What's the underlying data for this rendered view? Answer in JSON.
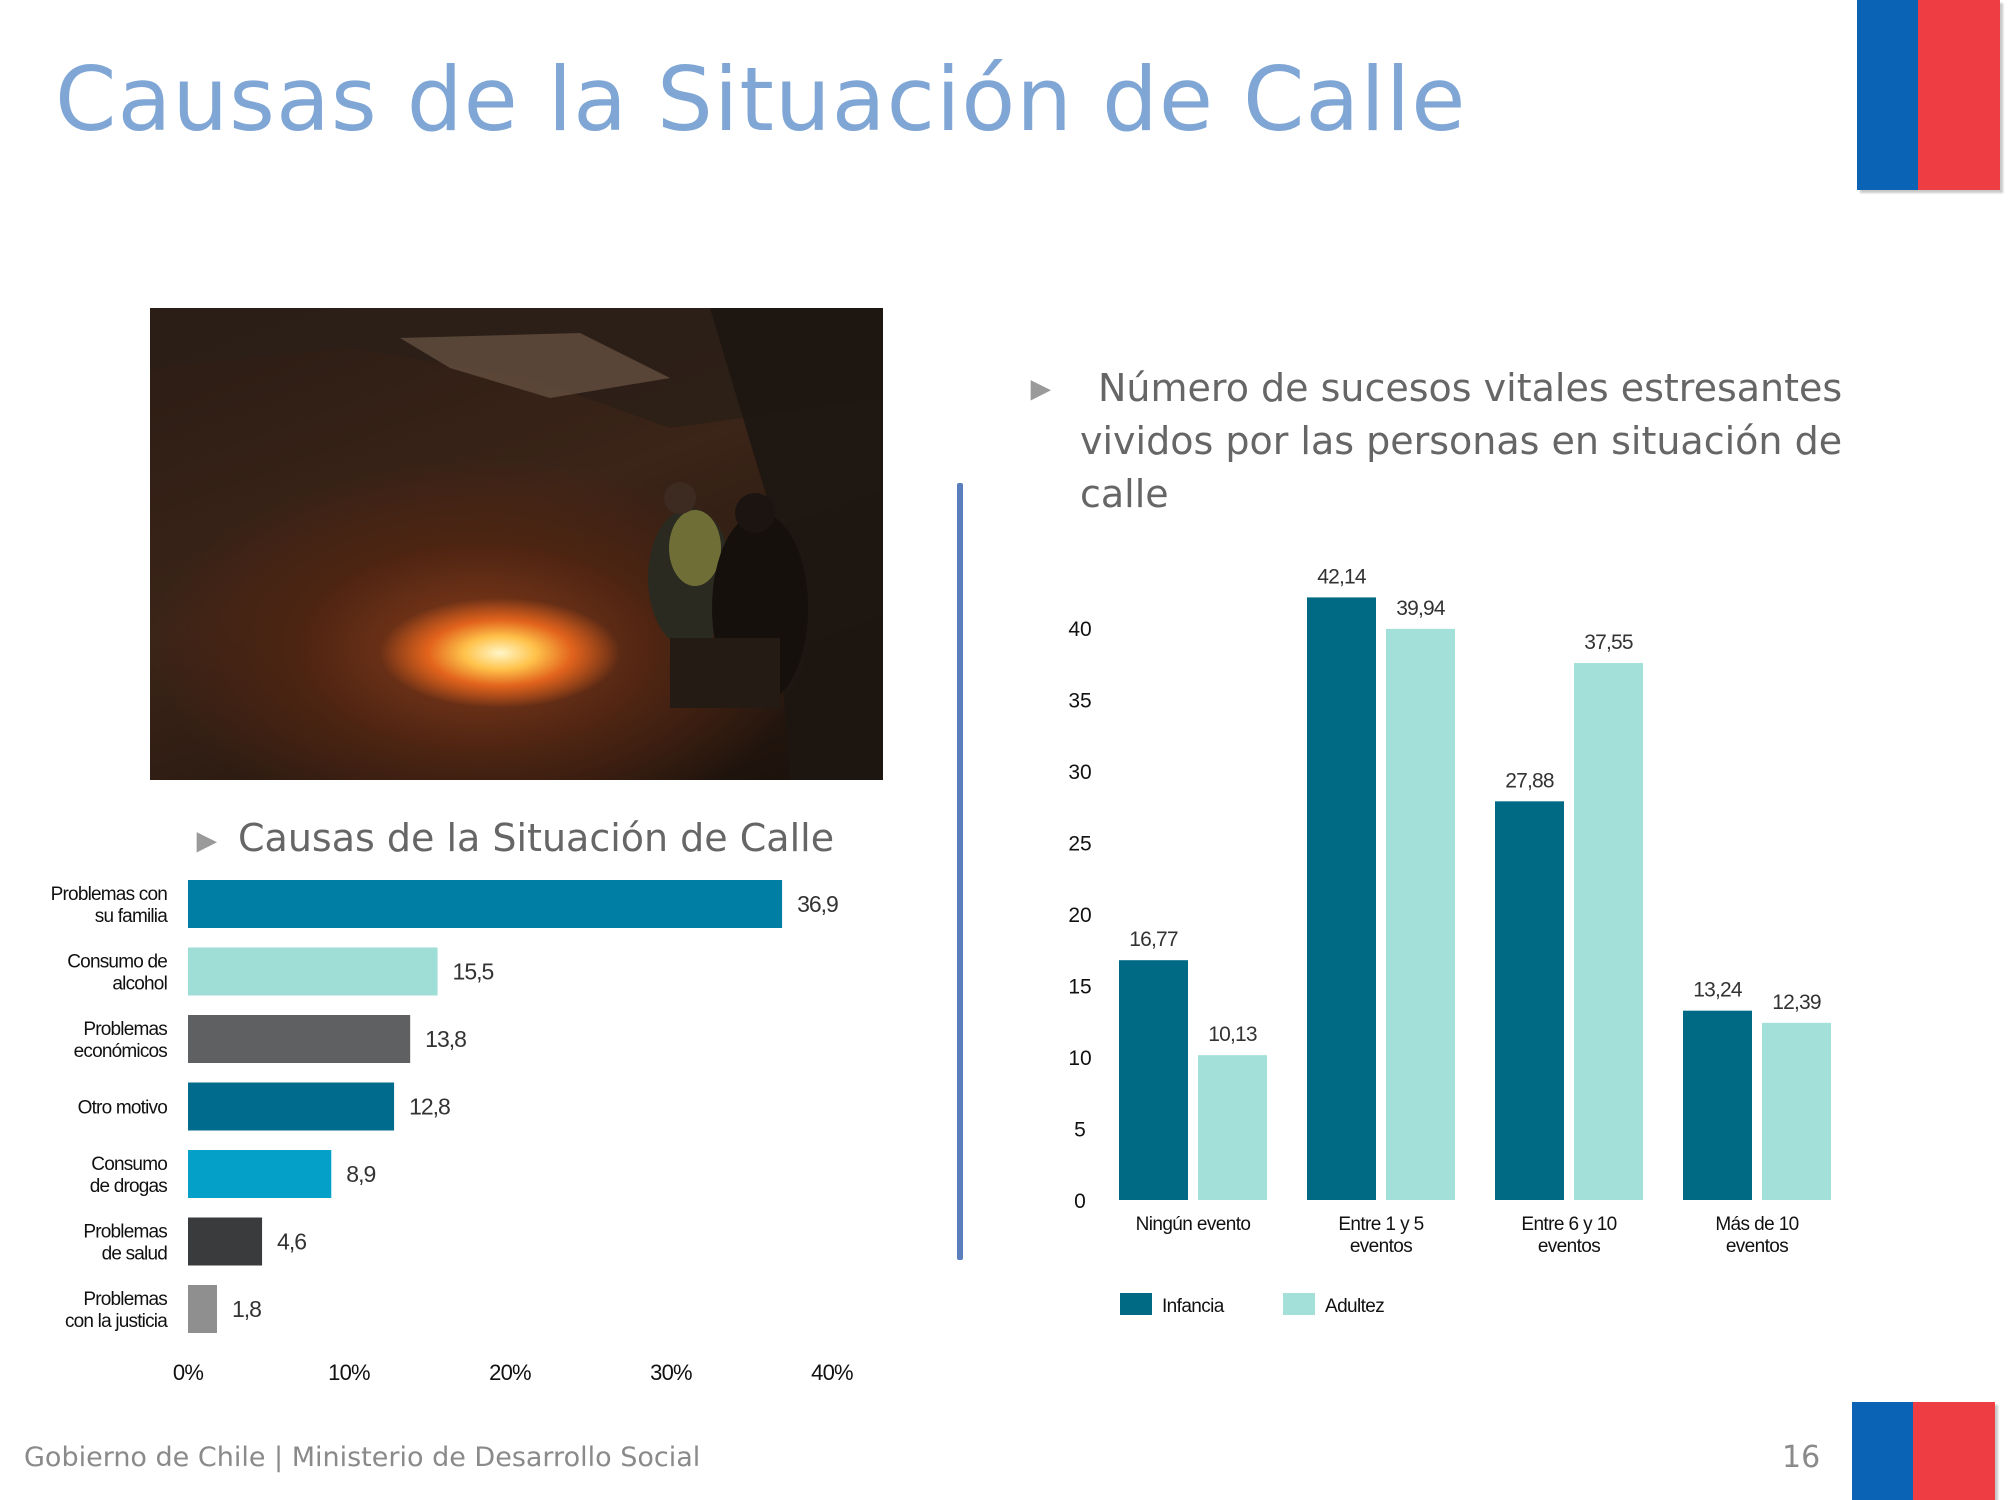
{
  "title": "Causas de la Situación de Calle",
  "footer": "Gobierno de Chile | Ministerio de Desarrollo Social",
  "page_number": "16",
  "flag_colors": {
    "blue": "#0b63b5",
    "red": "#ee3e44"
  },
  "left_subtitle": "Causas de la Situación de Calle",
  "right_subtitle_lines": [
    "Número de sucesos vitales estresantes",
    "vividos por las personas en situación de",
    "calle"
  ],
  "arrow_glyph": "►",
  "chart_data": [
    {
      "type": "bar",
      "orientation": "horizontal",
      "categories": [
        [
          "Problemas con",
          "su familia"
        ],
        [
          "Consumo de",
          "alcohol"
        ],
        [
          "Problemas",
          "económicos"
        ],
        [
          "Otro motivo"
        ],
        [
          "Consumo",
          "de drogas"
        ],
        [
          "Problemas",
          "de salud"
        ],
        [
          "Problemas",
          "con la justicia"
        ]
      ],
      "values": [
        36.9,
        15.5,
        13.8,
        12.8,
        8.9,
        4.6,
        1.8
      ],
      "value_labels": [
        "36,9",
        "15,5",
        "13,8",
        "12,8",
        "8,9",
        "4,6",
        "1,8"
      ],
      "colors": [
        "#007ea3",
        "#9fddd7",
        "#5f6061",
        "#006b8c",
        "#05a0c8",
        "#3a3b3c",
        "#8f8f8f"
      ],
      "xlim": [
        0,
        40
      ],
      "xticks": [
        0,
        10,
        20,
        30,
        40
      ],
      "xtick_labels": [
        "0%",
        "10%",
        "20%",
        "30%",
        "40%"
      ]
    },
    {
      "type": "bar",
      "orientation": "vertical",
      "categories": [
        [
          "Ningún evento"
        ],
        [
          "Entre 1 y 5",
          "eventos"
        ],
        [
          "Entre 6 y 10",
          "eventos"
        ],
        [
          "Más de 10",
          "eventos"
        ]
      ],
      "series": [
        {
          "name": "Infancia",
          "color": "#006a85",
          "values": [
            16.77,
            42.14,
            27.88,
            13.24
          ],
          "labels": [
            "16,77",
            "42,14",
            "27,88",
            "13,24"
          ]
        },
        {
          "name": "Adultez",
          "color": "#a3e0da",
          "values": [
            10.13,
            39.94,
            37.55,
            12.39
          ],
          "labels": [
            "10,13",
            "39,94",
            "37,55",
            "12,39"
          ]
        }
      ],
      "ylim": [
        0,
        40
      ],
      "yticks": [
        0,
        5,
        10,
        15,
        20,
        25,
        30,
        35,
        40
      ],
      "legend_position": "bottom-left"
    }
  ]
}
